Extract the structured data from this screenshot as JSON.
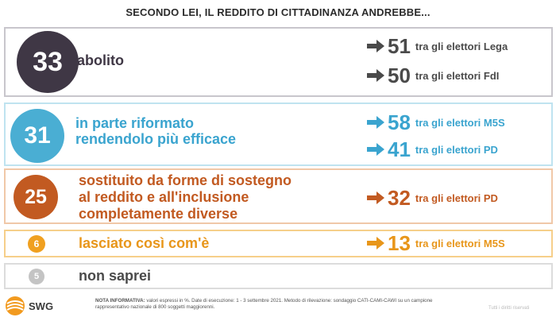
{
  "title": "SECONDO LEI, IL REDDITO DI CITTADINANZA ANDREBBE...",
  "chart_data": {
    "type": "table",
    "title": "SECONDO LEI, IL REDDITO DI CITTADINANZA ANDREBBE...",
    "rows": [
      {
        "value": "33",
        "label": "abolito",
        "color": "#3f3745",
        "label_color": "#3f3745",
        "stats": [
          {
            "value": "51",
            "text": "tra gli elettori Lega",
            "color": "#4a4a4a"
          },
          {
            "value": "50",
            "text": "tra gli elettori FdI",
            "color": "#4a4a4a"
          }
        ]
      },
      {
        "value": "31",
        "label": "in parte riformato\nrendendolo più efficace",
        "color": "#4aaed3",
        "label_color": "#3aa4cf",
        "stats": [
          {
            "value": "58",
            "text": "tra gli elettori M5S",
            "color": "#3aa4cf"
          },
          {
            "value": "41",
            "text": "tra gli elettori PD",
            "color": "#3aa4cf"
          }
        ]
      },
      {
        "value": "25",
        "label": "sostituito da forme di sostegno\nal reddito e all'inclusione\ncompletamente diverse",
        "color": "#c25a21",
        "label_color": "#c25a21",
        "stats": [
          {
            "value": "32",
            "text": "tra gli elettori PD",
            "color": "#c25a21"
          }
        ]
      },
      {
        "value": "6",
        "label": "lasciato così com'è",
        "color": "#f0a020",
        "label_color": "#e8961a",
        "stats": [
          {
            "value": "13",
            "text": "tra gli elettori M5S",
            "color": "#e8961a"
          }
        ]
      },
      {
        "value": "5",
        "label": "non saprei",
        "color": "#c4c4c4",
        "label_color": "#4a4a4a",
        "stats": []
      }
    ]
  },
  "footer": {
    "logo": "SWG",
    "note_label": "NOTA INFORMATIVA:",
    "note_text": "valori espressi in %. Date di esecuzione: 1 - 3 settembre 2021. Metodo di rilevazione: sondaggio CATI-CAMI-CAWI su un campione rappresentativo nazionale di 800 soggetti maggiorenni.",
    "copyright": "Tutti i diritti riservati"
  }
}
